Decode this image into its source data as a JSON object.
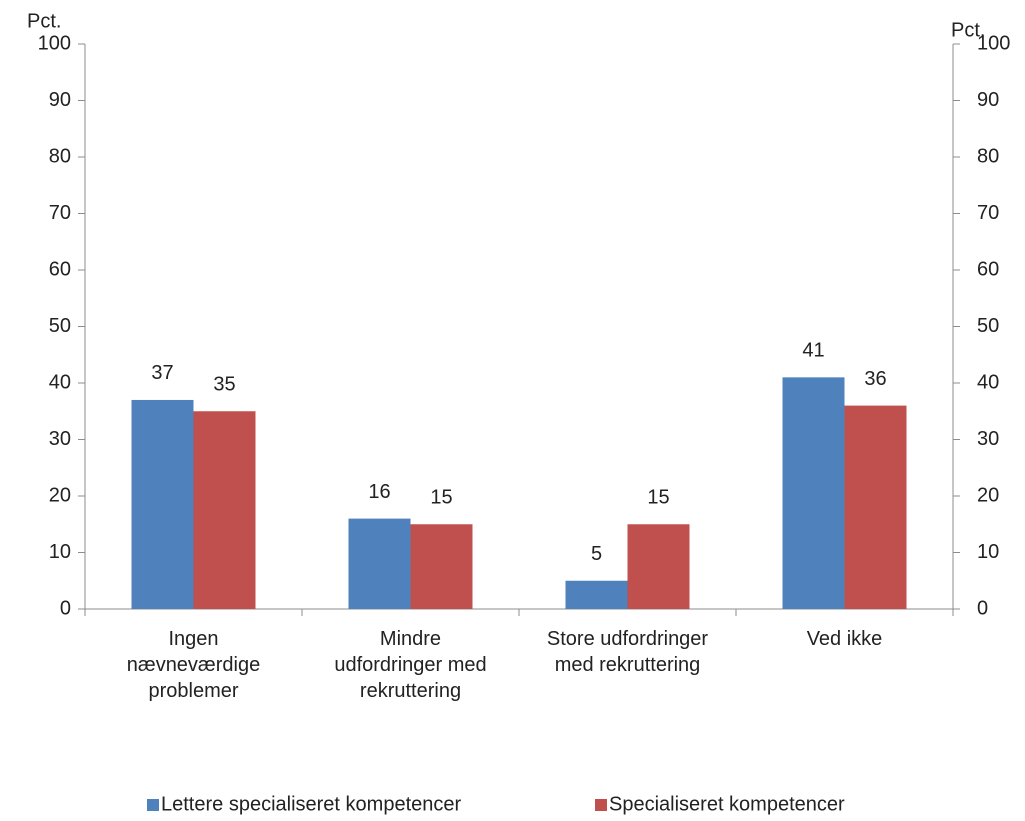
{
  "chart_data": {
    "type": "bar",
    "y_label": "Pct.",
    "y2_label": "Pct.",
    "categories": [
      "Ingen\nnævneværdige\nproblemer",
      "Mindre\nudfordringer med\nrekruttering",
      "Store udfordringer\nmed rekruttering",
      "Ved ikke"
    ],
    "series": [
      {
        "name": "Lettere specialiseret kompetencer",
        "color": "#4f81bd",
        "values": [
          37,
          16,
          5,
          41
        ]
      },
      {
        "name": "Specialiseret kompetencer",
        "color": "#c0504d",
        "values": [
          35,
          15,
          15,
          36
        ]
      }
    ],
    "ylim": [
      0,
      100
    ],
    "yticks": [
      0,
      10,
      20,
      30,
      40,
      50,
      60,
      70,
      80,
      90,
      100
    ],
    "y2lim": [
      0,
      100
    ],
    "y2ticks": [
      0,
      10,
      20,
      30,
      40,
      50,
      60,
      70,
      80,
      90,
      100
    ],
    "grid": false,
    "legend": "bottom"
  }
}
